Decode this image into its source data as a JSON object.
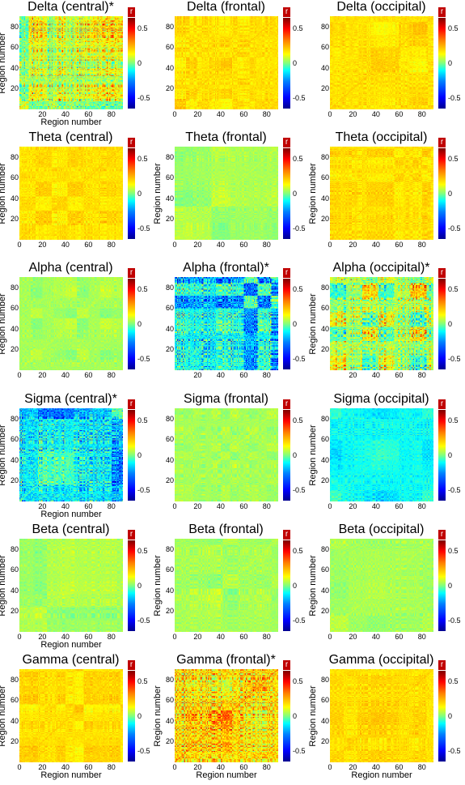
{
  "colorbar": {
    "label": "r",
    "ticks": [
      "0.5",
      "0",
      "-0.5"
    ],
    "colormap": "jet",
    "range": [
      -0.65,
      0.65
    ]
  },
  "panels": [
    {
      "title": "Delta (central)*",
      "xlabel": "Region number",
      "ylabel": "Region number",
      "xticks": [
        "20",
        "40",
        "60",
        "80"
      ],
      "yticks": [
        "20",
        "40",
        "60",
        "80"
      ],
      "pattern": "strong"
    },
    {
      "title": "Delta (frontal)",
      "xlabel": "",
      "ylabel": "",
      "xticks": [
        "0",
        "20",
        "40",
        "60",
        "80"
      ],
      "yticks": [
        "20",
        "40",
        "60",
        "80"
      ],
      "pattern": "weak_pos"
    },
    {
      "title": "Delta (occipital)",
      "xlabel": "",
      "ylabel": "",
      "xticks": [
        "0",
        "20",
        "40",
        "60",
        "80"
      ],
      "yticks": [
        "20",
        "40",
        "60",
        "80"
      ],
      "pattern": "weak_pos"
    },
    {
      "title": "Theta (central)",
      "xlabel": "",
      "ylabel": "Region number",
      "xticks": [
        "0",
        "20",
        "40",
        "60",
        "80"
      ],
      "yticks": [
        "20",
        "40",
        "60",
        "80"
      ],
      "pattern": "weak_pos"
    },
    {
      "title": "Theta (frontal)",
      "xlabel": "",
      "ylabel": "Region number",
      "xticks": [
        "0",
        "20",
        "40",
        "60",
        "80"
      ],
      "yticks": [
        "20",
        "40",
        "60",
        "80"
      ],
      "pattern": "neutral"
    },
    {
      "title": "Theta (occipital)",
      "xlabel": "",
      "ylabel": "Region number",
      "xticks": [
        "0",
        "20",
        "40",
        "60",
        "80"
      ],
      "yticks": [
        "20",
        "40",
        "60",
        "80"
      ],
      "pattern": "weak_pos"
    },
    {
      "title": "Alpha (central)",
      "xlabel": "",
      "ylabel": "Region number",
      "xticks": [
        "0",
        "20",
        "40",
        "60",
        "80"
      ],
      "yticks": [
        "20",
        "40",
        "60",
        "80"
      ],
      "pattern": "neutral"
    },
    {
      "title": "Alpha (frontal)*",
      "xlabel": "",
      "ylabel": "",
      "xticks": [
        "20",
        "40",
        "60",
        "80"
      ],
      "yticks": [
        "20",
        "40",
        "60",
        "80"
      ],
      "pattern": "strong_neg"
    },
    {
      "title": "Alpha (occipital)*",
      "xlabel": "",
      "ylabel": "Region number",
      "xticks": [
        "20",
        "40",
        "60",
        "80"
      ],
      "yticks": [
        "20",
        "40",
        "60",
        "80"
      ],
      "pattern": "strong"
    },
    {
      "title": "Sigma (central)*",
      "xlabel": "Region number",
      "ylabel": "Region number",
      "xticks": [
        "20",
        "40",
        "60",
        "80"
      ],
      "yticks": [
        "20",
        "40",
        "60",
        "80"
      ],
      "pattern": "strong_neg"
    },
    {
      "title": "Sigma (frontal)",
      "xlabel": "",
      "ylabel": "",
      "xticks": [
        "0",
        "20",
        "40",
        "60",
        "80"
      ],
      "yticks": [
        "20",
        "40",
        "60",
        "80"
      ],
      "pattern": "neutral"
    },
    {
      "title": "Sigma (occipital)",
      "xlabel": "",
      "ylabel": "Region number",
      "xticks": [
        "0",
        "20",
        "40",
        "60",
        "80"
      ],
      "yticks": [
        "20",
        "40",
        "60",
        "80"
      ],
      "pattern": "neg"
    },
    {
      "title": "Beta (central)",
      "xlabel": "Region number",
      "ylabel": "Region number",
      "xticks": [
        "0",
        "20",
        "40",
        "60",
        "80"
      ],
      "yticks": [
        "20",
        "40",
        "60",
        "80"
      ],
      "pattern": "neutral"
    },
    {
      "title": "Beta (frontal)",
      "xlabel": "",
      "ylabel": "Region number",
      "xticks": [
        "0",
        "20",
        "40",
        "60",
        "80"
      ],
      "yticks": [
        "20",
        "40",
        "60",
        "80"
      ],
      "pattern": "neutral"
    },
    {
      "title": "Beta (occipital)",
      "xlabel": "",
      "ylabel": "Region number",
      "xticks": [
        "0",
        "20",
        "40",
        "60",
        "80"
      ],
      "yticks": [
        "20",
        "40",
        "60",
        "80"
      ],
      "pattern": "neutral"
    },
    {
      "title": "Gamma (central)",
      "xlabel": "Region number",
      "ylabel": "Region number",
      "xticks": [
        "0",
        "20",
        "40",
        "60",
        "80"
      ],
      "yticks": [
        "20",
        "40",
        "60",
        "80"
      ],
      "pattern": "weak_pos"
    },
    {
      "title": "Gamma (frontal)*",
      "xlabel": "Region number",
      "ylabel": "Region number",
      "xticks": [
        "0",
        "20",
        "40",
        "60",
        "80"
      ],
      "yticks": [
        "20",
        "40",
        "60",
        "80"
      ],
      "pattern": "strong_pos"
    },
    {
      "title": "Gamma (occipital)",
      "xlabel": "Region number",
      "ylabel": "Region number",
      "xticks": [
        "0",
        "20",
        "40",
        "60",
        "80"
      ],
      "yticks": [
        "20",
        "40",
        "60",
        "80"
      ],
      "pattern": "weak_pos"
    }
  ],
  "chart_data": {
    "type": "heatmap",
    "layout": "6 rows x 3 columns",
    "x_range": [
      0,
      90
    ],
    "y_range": [
      0,
      90
    ],
    "color_range": [
      -0.65,
      0.65
    ],
    "colorbar_label": "r",
    "colorbar_ticks": [
      0.5,
      0,
      -0.5
    ],
    "bands": [
      "Delta",
      "Theta",
      "Alpha",
      "Sigma",
      "Beta",
      "Gamma"
    ],
    "regions": [
      "central",
      "frontal",
      "occipital"
    ],
    "significant": [
      "Delta (central)*",
      "Alpha (frontal)*",
      "Alpha (occipital)*",
      "Sigma (central)*",
      "Gamma (frontal)*"
    ]
  }
}
